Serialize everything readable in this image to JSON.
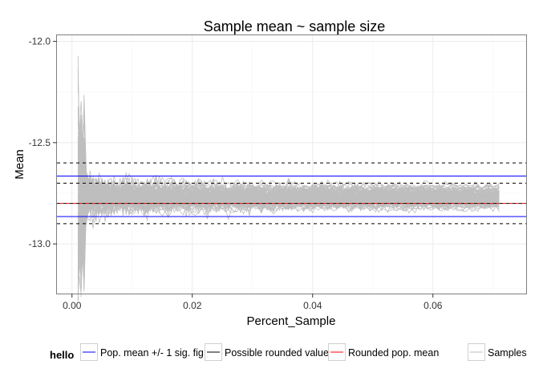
{
  "chart_data": {
    "type": "line",
    "title": "Sample mean ~ sample size",
    "xlabel": "Percent_Sample",
    "ylabel": "Mean",
    "xlim": [
      -0.0025,
      0.0755
    ],
    "ylim": [
      -13.245,
      -11.97
    ],
    "x_ticks": [
      0,
      0.02,
      0.04,
      0.06
    ],
    "x_tick_labels": [
      "0.00",
      "0.02",
      "0.04",
      "0.06"
    ],
    "y_ticks": [
      -12.0,
      -12.5,
      -13.0
    ],
    "y_tick_labels": [
      "-12.0",
      "-12.5",
      "-13.0"
    ],
    "grid": true,
    "hlines": [
      {
        "name": "Pop. mean +/- 1 sig. fig.",
        "y": -12.665,
        "color": "#0000ff",
        "style": "solid"
      },
      {
        "name": "Pop. mean +/- 1 sig. fig.",
        "y": -12.865,
        "color": "#0000ff",
        "style": "solid"
      },
      {
        "name": "Possible rounded values",
        "y": -12.6,
        "color": "#000000",
        "style": "dashed"
      },
      {
        "name": "Possible rounded values",
        "y": -12.7,
        "color": "#000000",
        "style": "dashed"
      },
      {
        "name": "Possible rounded values",
        "y": -12.8,
        "color": "#000000",
        "style": "dashed"
      },
      {
        "name": "Possible rounded values",
        "y": -12.9,
        "color": "#000000",
        "style": "dashed"
      },
      {
        "name": "Rounded pop. mean",
        "y": -12.8,
        "color": "#ff0000",
        "style": "dashed"
      }
    ],
    "samples": {
      "name": "Samples",
      "color": "#bebebe",
      "count": 100,
      "x_start": 0.001,
      "x_end": 0.071,
      "center": -12.77,
      "initial_spread": 0.55,
      "final_spread": 0.03
    },
    "legend": {
      "title": "hello",
      "position": "bottom",
      "entries": [
        {
          "label": "Pop. mean +/- 1 sig. fig.",
          "color": "#0000ff"
        },
        {
          "label": "Possible rounded values",
          "color": "#000000"
        },
        {
          "label": "Rounded pop. mean",
          "color": "#ff0000"
        },
        {
          "label": "Samples",
          "color": "#bebebe"
        }
      ]
    }
  }
}
